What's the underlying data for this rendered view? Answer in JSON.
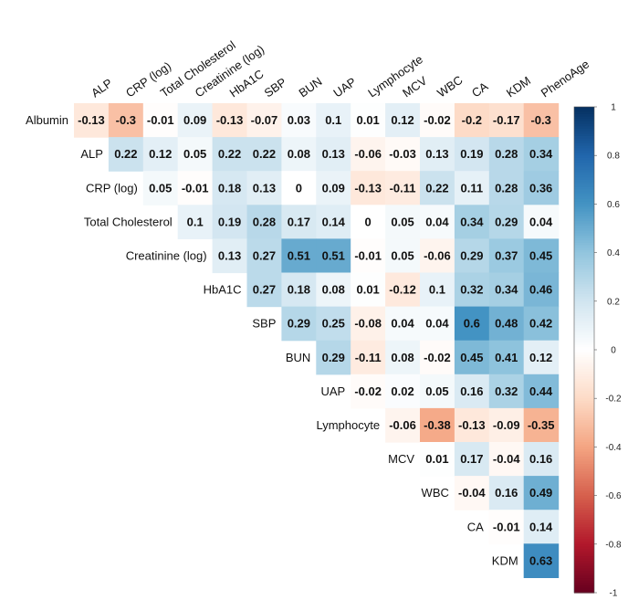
{
  "chart_data": {
    "type": "heatmap",
    "variables": [
      "Albumin",
      "ALP",
      "CRP (log)",
      "Total Cholesterol",
      "Creatinine (log)",
      "HbA1C",
      "SBP",
      "BUN",
      "UAP",
      "Lymphocyte",
      "MCV",
      "WBC",
      "CA",
      "KDM",
      "PhenoAge"
    ],
    "rows": [
      "Albumin",
      "ALP",
      "CRP (log)",
      "Total Cholesterol",
      "Creatinine (log)",
      "HbA1C",
      "SBP",
      "BUN",
      "UAP",
      "Lymphocyte",
      "MCV",
      "WBC",
      "CA",
      "KDM"
    ],
    "columns": [
      "ALP",
      "CRP (log)",
      "Total Cholesterol",
      "Creatinine (log)",
      "HbA1C",
      "SBP",
      "BUN",
      "UAP",
      "Lymphocyte",
      "MCV",
      "WBC",
      "CA",
      "KDM",
      "PhenoAge"
    ],
    "values": [
      [
        -0.13,
        -0.3,
        -0.01,
        0.09,
        -0.13,
        -0.07,
        0.03,
        0.1,
        0.01,
        0.12,
        -0.02,
        -0.2,
        -0.17,
        -0.3
      ],
      [
        0.22,
        0.12,
        0.05,
        0.22,
        0.22,
        0.08,
        0.13,
        -0.06,
        -0.03,
        0.13,
        0.19,
        0.28,
        0.34
      ],
      [
        0.05,
        -0.01,
        0.18,
        0.13,
        0,
        0.09,
        -0.13,
        -0.11,
        0.22,
        0.11,
        0.28,
        0.36
      ],
      [
        0.1,
        0.19,
        0.28,
        0.17,
        0.14,
        0,
        0.05,
        0.04,
        0.34,
        0.29,
        0.04
      ],
      [
        0.13,
        0.27,
        0.51,
        0.51,
        -0.01,
        0.05,
        -0.06,
        0.29,
        0.37,
        0.45
      ],
      [
        0.27,
        0.18,
        0.08,
        0.01,
        -0.12,
        0.1,
        0.32,
        0.34,
        0.46
      ],
      [
        0.29,
        0.25,
        -0.08,
        0.04,
        0.04,
        0.6,
        0.48,
        0.42
      ],
      [
        0.29,
        -0.11,
        0.08,
        -0.02,
        0.45,
        0.41,
        0.12
      ],
      [
        -0.02,
        0.02,
        0.05,
        0.16,
        0.32,
        0.44
      ],
      [
        -0.06,
        -0.38,
        -0.13,
        -0.09,
        -0.35
      ],
      [
        0.01,
        0.17,
        -0.04,
        0.16
      ],
      [
        -0.04,
        0.16,
        0.49
      ],
      [
        -0.01,
        0.14
      ],
      [
        0.63
      ]
    ],
    "value_labels": [
      [
        "-0.13",
        "-0.3",
        "-0.01",
        "0.09",
        "-0.13",
        "-0.07",
        "0.03",
        "0.1",
        "0.01",
        "0.12",
        "-0.02",
        "-0.2",
        "-0.17",
        "-0.3"
      ],
      [
        "0.22",
        "0.12",
        "0.05",
        "0.22",
        "0.22",
        "0.08",
        "0.13",
        "-0.06",
        "-0.03",
        "0.13",
        "0.19",
        "0.28",
        "0.34"
      ],
      [
        "0.05",
        "-0.01",
        "0.18",
        "0.13",
        "0",
        "0.09",
        "-0.13",
        "-0.11",
        "0.22",
        "0.11",
        "0.28",
        "0.36"
      ],
      [
        "0.1",
        "0.19",
        "0.28",
        "0.17",
        "0.14",
        "0",
        "0.05",
        "0.04",
        "0.34",
        "0.29",
        "0.04"
      ],
      [
        "0.13",
        "0.27",
        "0.51",
        "0.51",
        "-0.01",
        "0.05",
        "-0.06",
        "0.29",
        "0.37",
        "0.45"
      ],
      [
        "0.27",
        "0.18",
        "0.08",
        "0.01",
        "-0.12",
        "0.1",
        "0.32",
        "0.34",
        "0.46"
      ],
      [
        "0.29",
        "0.25",
        "-0.08",
        "0.04",
        "0.04",
        "0.6",
        "0.48",
        "0.42"
      ],
      [
        "0.29",
        "-0.11",
        "0.08",
        "-0.02",
        "0.45",
        "0.41",
        "0.12"
      ],
      [
        "-0.02",
        "0.02",
        "0.05",
        "0.16",
        "0.32",
        "0.44"
      ],
      [
        "-0.06",
        "-0.38",
        "-0.13",
        "-0.09",
        "-0.35"
      ],
      [
        "0.01",
        "0.17",
        "-0.04",
        "0.16"
      ],
      [
        "-0.04",
        "0.16",
        "0.49"
      ],
      [
        "-0.01",
        "0.14"
      ],
      [
        "0.63"
      ]
    ],
    "color_scale": {
      "range": [
        -1,
        1
      ],
      "ticks": [
        "1",
        "0.8",
        "0.6",
        "0.4",
        "0.2",
        "0",
        "-0.2",
        "-0.4",
        "-0.6",
        "-0.8",
        "-1"
      ],
      "low_color": "#67001f",
      "mid_color": "#ffffff",
      "high_color": "#053061"
    },
    "legend_placement": "right",
    "grid": false
  }
}
